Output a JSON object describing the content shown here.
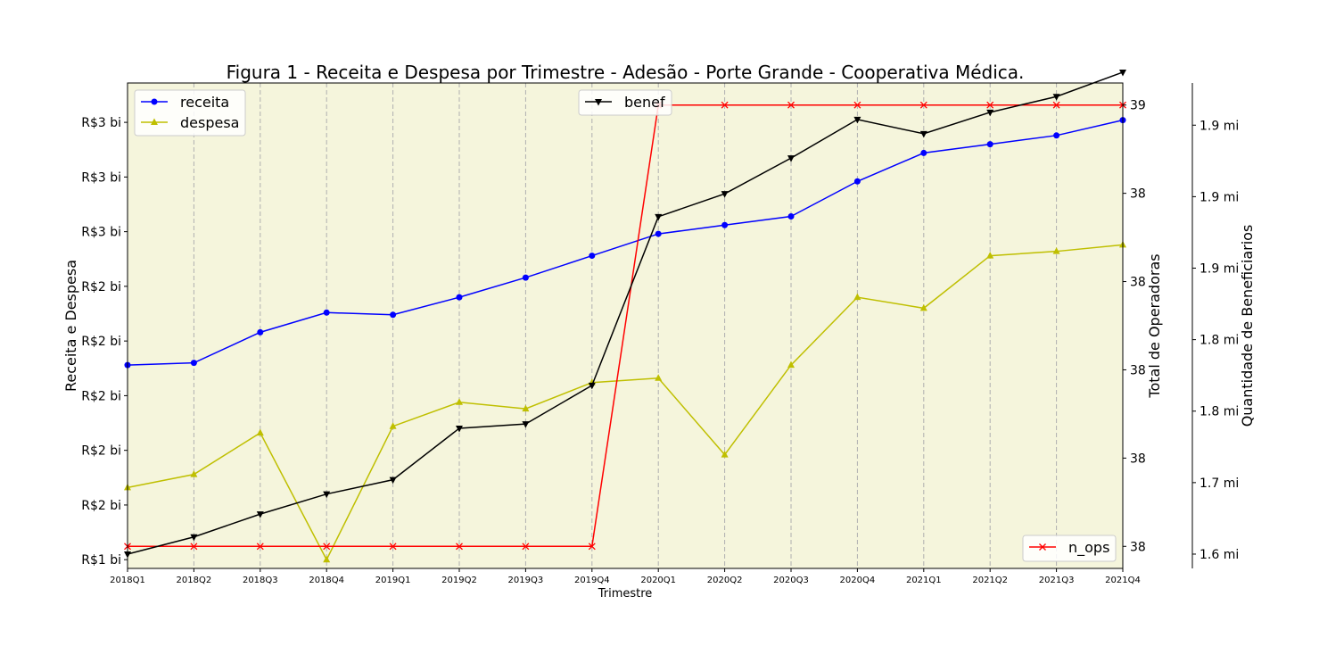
{
  "chart_data": {
    "type": "line",
    "title": "Figura 1 - Receita e Despesa por Trimestre - Adesão - Porte Grande - Cooperativa Médica.",
    "xlabel": "Trimestre",
    "categories": [
      "2018Q1",
      "2018Q2",
      "2018Q3",
      "2018Q4",
      "2019Q1",
      "2019Q2",
      "2019Q3",
      "2019Q4",
      "2020Q1",
      "2020Q2",
      "2020Q3",
      "2020Q4",
      "2021Q1",
      "2021Q2",
      "2021Q3",
      "2021Q4"
    ],
    "background_color": "#f5f5dc",
    "grid": "vertical dashed",
    "axes": {
      "left": {
        "label": "Receita e Despesa",
        "unit": "R$ bi",
        "ylim": [
          1.16,
          3.38
        ],
        "ticks": [
          1.2,
          1.45,
          1.7,
          1.95,
          2.2,
          2.45,
          2.7,
          2.95,
          3.2
        ],
        "tick_labels": [
          "R$1 bi",
          "R$2 bi",
          "R$2 bi",
          "R$2 bi",
          "R$2 bi",
          "R$2 bi",
          "R$3 bi",
          "R$3 bi",
          "R$3 bi"
        ]
      },
      "right1": {
        "label": "Total de Operadoras",
        "ylim": [
          37.95,
          39.05
        ],
        "ticks": [
          38.0,
          38.2,
          38.4,
          38.6,
          38.8,
          39.0
        ],
        "tick_labels": [
          "38",
          "38",
          "38",
          "38",
          "38",
          "39"
        ]
      },
      "right2": {
        "label": "Quantidade de Beneficiarios",
        "unit": "mi",
        "ylim": [
          1.62,
          1.9595
        ],
        "ticks": [
          1.63,
          1.68,
          1.73,
          1.78,
          1.83,
          1.88,
          1.93
        ],
        "tick_labels": [
          "1.6 mi",
          "1.7 mi",
          "1.8 mi",
          "1.8 mi",
          "1.9 mi",
          "1.9 mi",
          "1.9 mi"
        ]
      }
    },
    "series": [
      {
        "name": "receita",
        "axis": "left",
        "color": "#0000ff",
        "marker": "circle",
        "values": [
          2.09,
          2.1,
          2.24,
          2.33,
          2.32,
          2.4,
          2.49,
          2.59,
          2.69,
          2.73,
          2.77,
          2.93,
          3.06,
          3.1,
          3.14,
          3.21
        ]
      },
      {
        "name": "despesa",
        "axis": "left",
        "color": "#bfbf00",
        "marker": "triangle-up",
        "values": [
          1.53,
          1.59,
          1.78,
          1.2,
          1.81,
          1.92,
          1.89,
          2.01,
          2.03,
          1.68,
          2.09,
          2.4,
          2.35,
          2.59,
          2.61,
          2.64
        ]
      },
      {
        "name": "benef",
        "axis": "right2",
        "color": "#000000",
        "marker": "triangle-down",
        "values": [
          1.63,
          1.642,
          1.658,
          1.672,
          1.682,
          1.718,
          1.721,
          1.748,
          1.866,
          1.882,
          1.907,
          1.934,
          1.924,
          1.939,
          1.95,
          1.967
        ]
      },
      {
        "name": "n_ops",
        "axis": "right1",
        "color": "#ff0000",
        "marker": "x",
        "values": [
          38.0,
          38.0,
          38.0,
          38.0,
          38.0,
          38.0,
          38.0,
          38.0,
          39.0,
          39.0,
          39.0,
          39.0,
          39.0,
          39.0,
          39.0,
          39.0
        ]
      }
    ],
    "legends": [
      {
        "position": "upper-left",
        "items": [
          "receita",
          "despesa"
        ]
      },
      {
        "position": "upper-center",
        "items": [
          "benef"
        ]
      },
      {
        "position": "lower-right",
        "items": [
          "n_ops"
        ]
      }
    ]
  }
}
